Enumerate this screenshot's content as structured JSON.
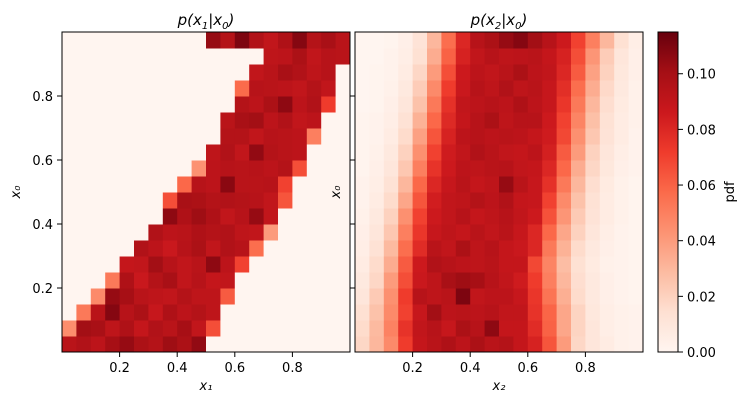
{
  "chart_data": [
    {
      "type": "heatmap",
      "title": "p(x₁|x₀)",
      "title_main": "p(x",
      "title_sub1": "1",
      "title_mid": "|x",
      "title_sub2": "0",
      "title_end": ")",
      "xlabel": "x₁",
      "ylabel": "x₀",
      "xlim": [
        0.0,
        1.0
      ],
      "ylim": [
        0.0,
        1.0
      ],
      "xticks": [
        "0.2",
        "0.4",
        "0.6",
        "0.8"
      ],
      "yticks": [
        "0.2",
        "0.4",
        "0.6",
        "0.8"
      ],
      "grid_size": 20,
      "description_of_values": "bin density (pdf), rows = x0 bins bottom→top, columns = x1 bins left→right",
      "band": {
        "lower_start": 0.0,
        "lower_slope": 1.0,
        "upper_start": 0.5,
        "upper_slope": 1.0
      },
      "values": [
        [
          0.093,
          0.096,
          0.092,
          0.1,
          0.104,
          0.098,
          0.095,
          0.102,
          0.098,
          0.105,
          0.0,
          0.0,
          0.0,
          0.0,
          0.0,
          0.0,
          0.0,
          0.0,
          0.0,
          0.0
        ],
        [
          0.045,
          0.101,
          0.099,
          0.091,
          0.097,
          0.089,
          0.096,
          0.093,
          0.1,
          0.09,
          0.066,
          0.0,
          0.0,
          0.0,
          0.0,
          0.0,
          0.0,
          0.0,
          0.0,
          0.0
        ],
        [
          0.0,
          0.052,
          0.093,
          0.108,
          0.094,
          0.098,
          0.088,
          0.097,
          0.092,
          0.095,
          0.091,
          0.0,
          0.0,
          0.0,
          0.0,
          0.0,
          0.0,
          0.0,
          0.0,
          0.0
        ],
        [
          0.0,
          0.0,
          0.046,
          0.104,
          0.1,
          0.093,
          0.091,
          0.09,
          0.095,
          0.091,
          0.091,
          0.062,
          0.0,
          0.0,
          0.0,
          0.0,
          0.0,
          0.0,
          0.0,
          0.0
        ],
        [
          0.0,
          0.0,
          0.0,
          0.052,
          0.097,
          0.087,
          0.095,
          0.099,
          0.09,
          0.094,
          0.089,
          0.09,
          0.0,
          0.0,
          0.0,
          0.0,
          0.0,
          0.0,
          0.0,
          0.0
        ],
        [
          0.0,
          0.0,
          0.0,
          0.0,
          0.089,
          0.09,
          0.101,
          0.094,
          0.09,
          0.093,
          0.106,
          0.092,
          0.07,
          0.0,
          0.0,
          0.0,
          0.0,
          0.0,
          0.0,
          0.0
        ],
        [
          0.0,
          0.0,
          0.0,
          0.0,
          0.0,
          0.096,
          0.092,
          0.087,
          0.094,
          0.098,
          0.09,
          0.096,
          0.094,
          0.056,
          0.0,
          0.0,
          0.0,
          0.0,
          0.0,
          0.0
        ],
        [
          0.0,
          0.0,
          0.0,
          0.0,
          0.0,
          0.0,
          0.096,
          0.092,
          0.093,
          0.097,
          0.095,
          0.096,
          0.091,
          0.09,
          0.04,
          0.0,
          0.0,
          0.0,
          0.0,
          0.0
        ],
        [
          0.0,
          0.0,
          0.0,
          0.0,
          0.0,
          0.0,
          0.0,
          0.106,
          0.097,
          0.102,
          0.097,
          0.09,
          0.094,
          0.104,
          0.09,
          0.0,
          0.0,
          0.0,
          0.0,
          0.0
        ],
        [
          0.0,
          0.0,
          0.0,
          0.0,
          0.0,
          0.0,
          0.0,
          0.066,
          0.099,
          0.098,
          0.095,
          0.096,
          0.095,
          0.094,
          0.09,
          0.064,
          0.0,
          0.0,
          0.0,
          0.0
        ],
        [
          0.0,
          0.0,
          0.0,
          0.0,
          0.0,
          0.0,
          0.0,
          0.0,
          0.058,
          0.094,
          0.092,
          0.107,
          0.093,
          0.093,
          0.094,
          0.07,
          0.0,
          0.0,
          0.0,
          0.0
        ],
        [
          0.0,
          0.0,
          0.0,
          0.0,
          0.0,
          0.0,
          0.0,
          0.0,
          0.0,
          0.043,
          0.092,
          0.094,
          0.093,
          0.094,
          0.092,
          0.095,
          0.066,
          0.0,
          0.0,
          0.0
        ],
        [
          0.0,
          0.0,
          0.0,
          0.0,
          0.0,
          0.0,
          0.0,
          0.0,
          0.0,
          0.0,
          0.091,
          0.096,
          0.09,
          0.105,
          0.095,
          0.093,
          0.092,
          0.0,
          0.0,
          0.0
        ],
        [
          0.0,
          0.0,
          0.0,
          0.0,
          0.0,
          0.0,
          0.0,
          0.0,
          0.0,
          0.0,
          0.0,
          0.095,
          0.095,
          0.09,
          0.094,
          0.093,
          0.092,
          0.05,
          0.0,
          0.0
        ],
        [
          0.0,
          0.0,
          0.0,
          0.0,
          0.0,
          0.0,
          0.0,
          0.0,
          0.0,
          0.0,
          0.0,
          0.093,
          0.099,
          0.101,
          0.092,
          0.096,
          0.09,
          0.092,
          0.0,
          0.0
        ],
        [
          0.0,
          0.0,
          0.0,
          0.0,
          0.0,
          0.0,
          0.0,
          0.0,
          0.0,
          0.0,
          0.0,
          0.0,
          0.095,
          0.092,
          0.098,
          0.106,
          0.092,
          0.096,
          0.072,
          0.0
        ],
        [
          0.0,
          0.0,
          0.0,
          0.0,
          0.0,
          0.0,
          0.0,
          0.0,
          0.0,
          0.0,
          0.0,
          0.0,
          0.057,
          0.094,
          0.093,
          0.092,
          0.09,
          0.095,
          0.09,
          0.0
        ],
        [
          0.0,
          0.0,
          0.0,
          0.0,
          0.0,
          0.0,
          0.0,
          0.0,
          0.0,
          0.0,
          0.0,
          0.0,
          0.0,
          0.09,
          0.093,
          0.099,
          0.096,
          0.091,
          0.094,
          0.0
        ],
        [
          0.0,
          0.0,
          0.0,
          0.0,
          0.0,
          0.0,
          0.0,
          0.0,
          0.0,
          0.0,
          0.0,
          0.0,
          0.0,
          0.0,
          0.091,
          0.092,
          0.098,
          0.09,
          0.094,
          0.093
        ],
        [
          0.0,
          0.0,
          0.0,
          0.0,
          0.0,
          0.0,
          0.0,
          0.0,
          0.0,
          0.0,
          0.104,
          0.095,
          0.11,
          0.096,
          0.09,
          0.097,
          0.108,
          0.095,
          0.099,
          0.093
        ]
      ]
    },
    {
      "type": "heatmap",
      "title": "p(x₂|x₀)",
      "title_main": "p(x",
      "title_sub1": "2",
      "title_mid": "|x",
      "title_sub2": "0",
      "title_end": ")",
      "xlabel": "x₂",
      "ylabel": "x₀",
      "xlim": [
        0.0,
        1.0
      ],
      "ylim": [
        0.0,
        1.0
      ],
      "xticks": [
        "0.2",
        "0.4",
        "0.6",
        "0.8"
      ],
      "yticks": [
        "0.2",
        "0.4",
        "0.6",
        "0.8"
      ],
      "grid_size": 20,
      "values": [
        [
          0.018,
          0.03,
          0.046,
          0.072,
          0.089,
          0.093,
          0.097,
          0.092,
          0.098,
          0.093,
          0.095,
          0.089,
          0.082,
          0.064,
          0.04,
          0.018,
          0.01,
          0.006,
          0.003,
          0.002
        ],
        [
          0.016,
          0.029,
          0.049,
          0.075,
          0.09,
          0.094,
          0.088,
          0.098,
          0.094,
          0.106,
          0.089,
          0.089,
          0.078,
          0.06,
          0.036,
          0.019,
          0.01,
          0.005,
          0.003,
          0.002
        ],
        [
          0.014,
          0.026,
          0.046,
          0.07,
          0.088,
          0.101,
          0.092,
          0.093,
          0.092,
          0.094,
          0.09,
          0.09,
          0.075,
          0.059,
          0.036,
          0.019,
          0.009,
          0.005,
          0.003,
          0.002
        ],
        [
          0.01,
          0.023,
          0.044,
          0.072,
          0.094,
          0.091,
          0.093,
          0.11,
          0.09,
          0.092,
          0.092,
          0.088,
          0.074,
          0.054,
          0.033,
          0.016,
          0.008,
          0.004,
          0.002,
          0.001
        ],
        [
          0.008,
          0.018,
          0.04,
          0.066,
          0.087,
          0.091,
          0.099,
          0.102,
          0.1,
          0.094,
          0.09,
          0.085,
          0.072,
          0.05,
          0.03,
          0.015,
          0.008,
          0.004,
          0.002,
          0.001
        ],
        [
          0.006,
          0.016,
          0.034,
          0.062,
          0.086,
          0.096,
          0.094,
          0.092,
          0.091,
          0.093,
          0.089,
          0.089,
          0.068,
          0.048,
          0.028,
          0.014,
          0.007,
          0.003,
          0.002,
          0.001
        ],
        [
          0.005,
          0.013,
          0.029,
          0.056,
          0.078,
          0.093,
          0.09,
          0.098,
          0.091,
          0.094,
          0.089,
          0.087,
          0.08,
          0.052,
          0.032,
          0.016,
          0.008,
          0.004,
          0.002,
          0.001
        ],
        [
          0.004,
          0.01,
          0.024,
          0.05,
          0.074,
          0.088,
          0.091,
          0.089,
          0.093,
          0.09,
          0.093,
          0.088,
          0.08,
          0.058,
          0.036,
          0.02,
          0.01,
          0.005,
          0.002,
          0.001
        ],
        [
          0.003,
          0.008,
          0.02,
          0.044,
          0.07,
          0.086,
          0.09,
          0.094,
          0.089,
          0.091,
          0.094,
          0.09,
          0.086,
          0.065,
          0.042,
          0.023,
          0.012,
          0.006,
          0.003,
          0.001
        ],
        [
          0.002,
          0.006,
          0.016,
          0.036,
          0.064,
          0.084,
          0.09,
          0.091,
          0.095,
          0.092,
          0.096,
          0.089,
          0.088,
          0.07,
          0.046,
          0.026,
          0.013,
          0.006,
          0.003,
          0.001
        ],
        [
          0.002,
          0.005,
          0.013,
          0.03,
          0.058,
          0.08,
          0.088,
          0.093,
          0.089,
          0.091,
          0.104,
          0.093,
          0.088,
          0.076,
          0.052,
          0.03,
          0.015,
          0.007,
          0.003,
          0.001
        ],
        [
          0.001,
          0.004,
          0.01,
          0.024,
          0.05,
          0.075,
          0.086,
          0.092,
          0.091,
          0.093,
          0.094,
          0.09,
          0.089,
          0.08,
          0.058,
          0.034,
          0.018,
          0.009,
          0.004,
          0.002
        ],
        [
          0.001,
          0.003,
          0.008,
          0.02,
          0.044,
          0.07,
          0.085,
          0.09,
          0.096,
          0.093,
          0.09,
          0.089,
          0.092,
          0.083,
          0.062,
          0.04,
          0.02,
          0.01,
          0.005,
          0.002
        ],
        [
          0.001,
          0.002,
          0.006,
          0.016,
          0.038,
          0.064,
          0.082,
          0.092,
          0.094,
          0.092,
          0.093,
          0.092,
          0.089,
          0.085,
          0.068,
          0.044,
          0.024,
          0.012,
          0.006,
          0.002
        ],
        [
          0.001,
          0.002,
          0.005,
          0.013,
          0.032,
          0.058,
          0.079,
          0.089,
          0.094,
          0.098,
          0.091,
          0.094,
          0.094,
          0.086,
          0.07,
          0.048,
          0.027,
          0.013,
          0.006,
          0.003
        ],
        [
          0.0,
          0.001,
          0.004,
          0.01,
          0.026,
          0.052,
          0.076,
          0.09,
          0.092,
          0.094,
          0.092,
          0.097,
          0.092,
          0.088,
          0.074,
          0.052,
          0.03,
          0.015,
          0.007,
          0.003
        ],
        [
          0.0,
          0.001,
          0.003,
          0.008,
          0.022,
          0.046,
          0.072,
          0.087,
          0.094,
          0.091,
          0.096,
          0.091,
          0.093,
          0.088,
          0.077,
          0.056,
          0.034,
          0.017,
          0.008,
          0.003
        ],
        [
          0.0,
          0.001,
          0.002,
          0.006,
          0.018,
          0.04,
          0.066,
          0.086,
          0.092,
          0.09,
          0.093,
          0.098,
          0.092,
          0.09,
          0.08,
          0.062,
          0.038,
          0.02,
          0.009,
          0.004
        ],
        [
          0.0,
          0.0,
          0.002,
          0.005,
          0.014,
          0.034,
          0.06,
          0.082,
          0.09,
          0.094,
          0.091,
          0.092,
          0.093,
          0.089,
          0.082,
          0.066,
          0.042,
          0.022,
          0.01,
          0.004
        ],
        [
          0.0,
          0.0,
          0.001,
          0.004,
          0.012,
          0.03,
          0.056,
          0.08,
          0.094,
          0.098,
          0.104,
          0.108,
          0.101,
          0.094,
          0.086,
          0.07,
          0.05,
          0.03,
          0.014,
          0.005
        ]
      ]
    }
  ],
  "colorbar": {
    "label": "pdf",
    "ticks": [
      "0.00",
      "0.02",
      "0.04",
      "0.06",
      "0.08",
      "0.10"
    ],
    "tick_values": [
      0.0,
      0.02,
      0.04,
      0.06,
      0.08,
      0.1
    ],
    "vmin": 0.0,
    "vmax": 0.115,
    "colormap": "Reds",
    "colors": [
      "#fff5f0",
      "#fee0d2",
      "#fcbba1",
      "#fc9272",
      "#fb6a4a",
      "#ef3b2c",
      "#cb181d",
      "#a50f15",
      "#67000d"
    ]
  }
}
